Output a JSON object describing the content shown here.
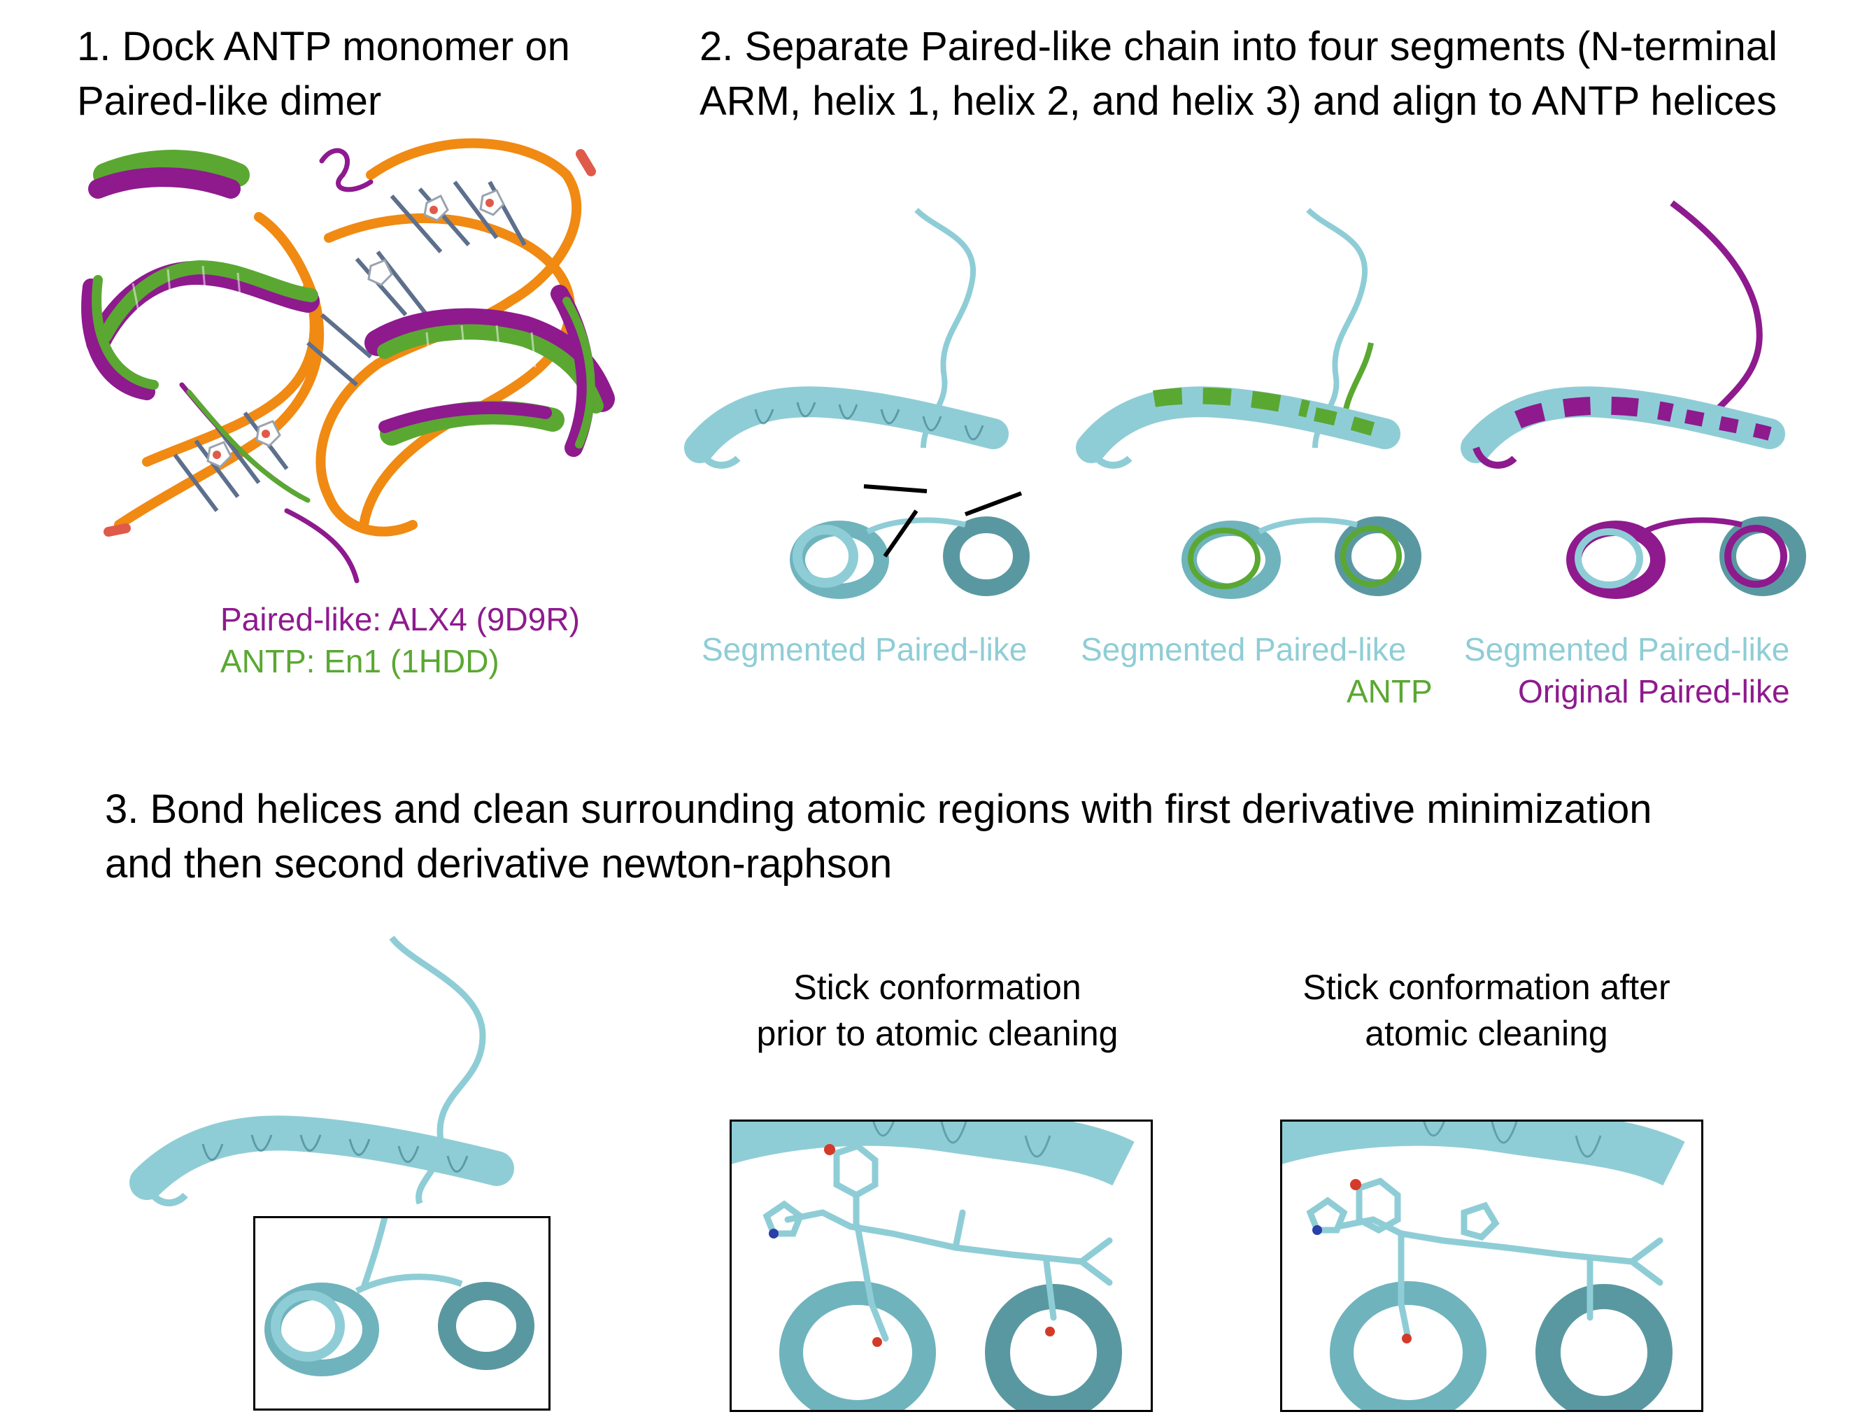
{
  "step1": {
    "title": "1. Dock ANTP monomer on Paired-like dimer",
    "legend_paired": "Paired-like: ALX4 (9D9R)",
    "legend_antp": "ANTP: En1 (1HDD)"
  },
  "step2": {
    "title": "2. Separate Paired-like chain into four segments (N-terminal ARM, helix 1, helix 2, and helix 3) and align to ANTP helices",
    "panel1_label": "Segmented Paired-like",
    "panel2_label_a": "Segmented Paired-like",
    "panel2_label_b": "ANTP",
    "panel3_label_a": "Segmented Paired-like",
    "panel3_label_b": "Original Paired-like"
  },
  "step3": {
    "title": "3. Bond helices and clean surrounding atomic regions with first derivative minimization and then second derivative newton-raphson",
    "before_caption": "Stick conformation prior to atomic cleaning",
    "after_caption": "Stick conformation after atomic cleaning"
  },
  "colors": {
    "paired_like": "#8e1a8e",
    "antp": "#5aa832",
    "segmented": "#8fcdd6",
    "dna_backbone": "#f08a12"
  }
}
